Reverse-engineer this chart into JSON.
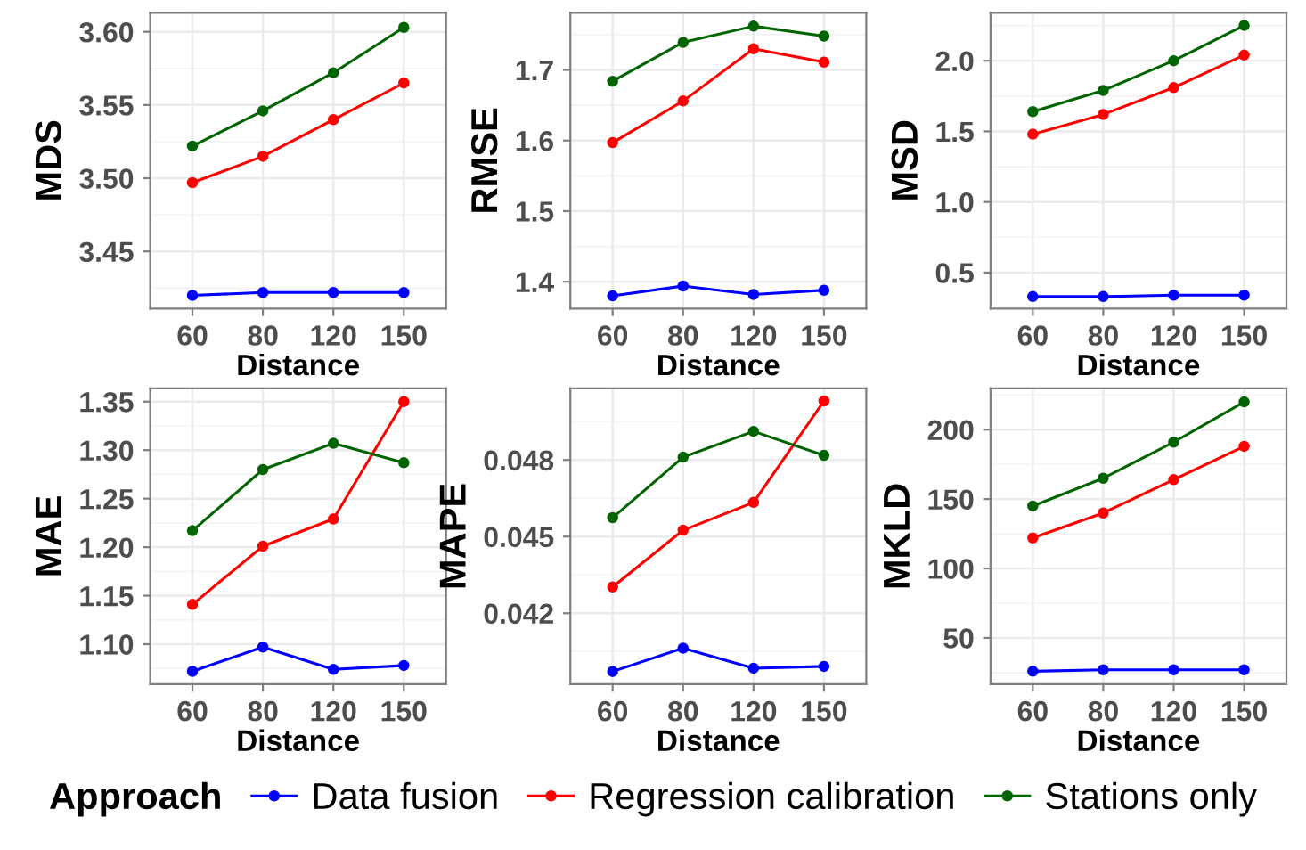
{
  "chart_data": [
    {
      "type": "line",
      "xlabel": "Distance",
      "ylabel": "MDS",
      "categories": [
        "60",
        "80",
        "120",
        "150"
      ],
      "ylim": [
        3.411,
        3.613
      ],
      "yticks": [
        3.45,
        {
          "value": 3.5,
          "label": "3.50"
        },
        3.55,
        {
          "value": 3.6,
          "label": "3.60"
        }
      ],
      "grid": true,
      "marker": "circle",
      "legend": "bottom",
      "legend_title": "Approach",
      "series": [
        {
          "name": "Data fusion",
          "color": "#0000ff",
          "values": [
            3.42,
            3.422,
            3.422,
            3.422
          ]
        },
        {
          "name": "Regression calibration",
          "color": "#ff0000",
          "values": [
            3.497,
            3.515,
            3.54,
            3.565
          ]
        },
        {
          "name": "Stations only",
          "color": "#006400",
          "values": [
            3.522,
            3.546,
            3.572,
            3.603
          ]
        }
      ]
    },
    {
      "type": "line",
      "xlabel": "Distance",
      "ylabel": "RMSE",
      "categories": [
        "60",
        "80",
        "120",
        "150"
      ],
      "ylim": [
        1.362,
        1.781
      ],
      "yticks": [
        1.4,
        1.5,
        1.6,
        1.7
      ],
      "grid": true,
      "marker": "circle",
      "series": [
        {
          "color": "#0000ff",
          "values": [
            1.38,
            1.394,
            1.382,
            1.388
          ]
        },
        {
          "color": "#ff0000",
          "values": [
            1.597,
            1.656,
            1.73,
            1.711
          ]
        },
        {
          "color": "#006400",
          "values": [
            1.684,
            1.739,
            1.762,
            1.748
          ]
        }
      ]
    },
    {
      "type": "line",
      "xlabel": "Distance",
      "ylabel": "MSD",
      "categories": [
        "60",
        "80",
        "120",
        "150"
      ],
      "ylim": [
        0.245,
        2.34
      ],
      "yticks": [
        0.5,
        {
          "value": 1.0,
          "label": "1.0"
        },
        1.5,
        {
          "value": 2.0,
          "label": "2.0"
        }
      ],
      "grid": true,
      "marker": "circle",
      "series": [
        {
          "color": "#0000ff",
          "values": [
            0.33,
            0.33,
            0.34,
            0.34
          ]
        },
        {
          "color": "#ff0000",
          "values": [
            1.48,
            1.62,
            1.81,
            2.04
          ]
        },
        {
          "color": "#006400",
          "values": [
            1.64,
            1.79,
            2.0,
            2.25
          ]
        }
      ]
    },
    {
      "type": "line",
      "xlabel": "Distance",
      "ylabel": "MAE",
      "categories": [
        "60",
        "80",
        "120",
        "150"
      ],
      "ylim": [
        1.0587,
        1.3636
      ],
      "yticks": [
        {
          "value": 1.1,
          "label": "1.10"
        },
        1.15,
        {
          "value": 1.2,
          "label": "1.20"
        },
        1.25,
        {
          "value": 1.3,
          "label": "1.30"
        },
        1.35
      ],
      "grid": true,
      "marker": "circle",
      "series": [
        {
          "color": "#0000ff",
          "values": [
            1.072,
            1.097,
            1.074,
            1.078
          ]
        },
        {
          "color": "#ff0000",
          "values": [
            1.141,
            1.201,
            1.229,
            1.35
          ]
        },
        {
          "color": "#006400",
          "values": [
            1.217,
            1.28,
            1.307,
            1.287
          ]
        }
      ]
    },
    {
      "type": "line",
      "xlabel": "Distance",
      "ylabel": "MAPE",
      "categories": [
        "60",
        "80",
        "120",
        "150"
      ],
      "ylim": [
        0.03922,
        0.0508
      ],
      "yticks": [
        0.042,
        0.045,
        0.048
      ],
      "grid": true,
      "marker": "circle",
      "series": [
        {
          "color": "#0000ff",
          "values": [
            0.03972,
            0.04063,
            0.03985,
            0.03992
          ]
        },
        {
          "color": "#ff0000",
          "values": [
            0.04303,
            0.04525,
            0.04634,
            0.05031
          ]
        },
        {
          "color": "#006400",
          "values": [
            0.04574,
            0.04811,
            0.04912,
            0.04818
          ]
        }
      ]
    },
    {
      "type": "line",
      "xlabel": "Distance",
      "ylabel": "MKLD",
      "categories": [
        "60",
        "80",
        "120",
        "150"
      ],
      "ylim": [
        16.6,
        229.7
      ],
      "yticks": [
        50,
        100,
        150,
        200
      ],
      "grid": true,
      "marker": "circle",
      "series": [
        {
          "color": "#0000ff",
          "values": [
            26,
            27,
            27,
            27
          ]
        },
        {
          "color": "#ff0000",
          "values": [
            122,
            140,
            164,
            188
          ]
        },
        {
          "color": "#006400",
          "values": [
            145,
            165,
            191,
            220
          ]
        }
      ]
    }
  ]
}
